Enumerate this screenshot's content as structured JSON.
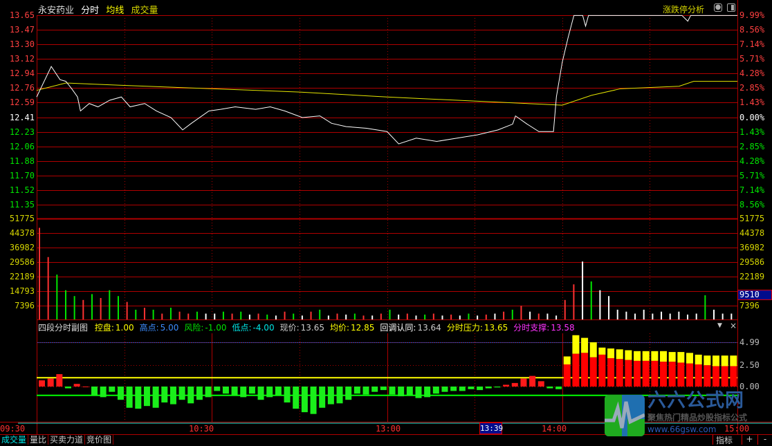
{
  "header": {
    "stock_name": "永安药业",
    "mode": "分时",
    "avg_label": "均线",
    "vol_label": "成交量",
    "limit_analysis": "涨跌停分析"
  },
  "colors": {
    "up": "#ff3232",
    "down": "#00e600",
    "flat": "#ffffff",
    "grid": "#b00000",
    "price_line": "#ffffff",
    "avg_line": "#e6e600",
    "axis_text_vol": "#d6d600",
    "highlight_bg": "#000c8c"
  },
  "price_axis": {
    "prev_close": 12.41,
    "prices": [
      "13.65",
      "13.47",
      "13.30",
      "13.12",
      "12.94",
      "12.76",
      "12.59",
      "12.41",
      "12.23",
      "12.06",
      "11.88",
      "11.70",
      "11.52",
      "11.35"
    ],
    "percents": [
      "9.99%",
      "8.56%",
      "7.14%",
      "5.71%",
      "4.28%",
      "2.85%",
      "1.43%",
      "0.00%",
      "1.43%",
      "2.85%",
      "4.28%",
      "5.71%",
      "7.14%",
      "8.56%"
    ]
  },
  "vol_axis": {
    "labels": [
      "51775",
      "44378",
      "36982",
      "29586",
      "22189",
      "14793",
      "7396"
    ],
    "max": 51775,
    "cursor_value": "9510"
  },
  "sub_indicator": {
    "name": "四段分时副图",
    "fields": [
      {
        "label": "控盘:",
        "value": "1.00",
        "color": "#ffff00"
      },
      {
        "label": "高点:",
        "value": "5.00",
        "color": "#3c8cff"
      },
      {
        "label": "风险:",
        "value": "-1.00",
        "color": "#00e600"
      },
      {
        "label": "低点:",
        "value": "-4.00",
        "color": "#00e6e6"
      },
      {
        "label": "现价:",
        "value": "13.65",
        "color": "#cccccc"
      },
      {
        "label": "均价:",
        "value": "12.85",
        "color": "#ffff00"
      },
      {
        "label": "回调认同:",
        "value": "13.64",
        "color": "#ffffff"
      },
      {
        "label": "分时压力:",
        "value": "13.65",
        "color": "#ffff00"
      },
      {
        "label": "分时支撑:",
        "value": "13.58",
        "color": "#ff32ff"
      }
    ],
    "axis": [
      "4.99",
      "2.50",
      "0.00"
    ]
  },
  "time_axis": {
    "labels": [
      "09:30",
      "10:30",
      "13:00",
      "14:00",
      "15:00"
    ],
    "cursor_time": "13:39"
  },
  "bottom_tabs": [
    "成交量",
    "量比",
    "买卖力道",
    "竞价图"
  ],
  "bottom_right": {
    "indicator": "指标",
    "plus": "+",
    "minus": "-"
  },
  "logo": {
    "name": "六六公式网",
    "slogan": "聚焦热门精品炒股指标公式",
    "url": "www.66gsw.com"
  },
  "chart_data": {
    "type": "line",
    "price": [
      [
        "09:30",
        12.66
      ],
      [
        "09:35",
        13.03
      ],
      [
        "09:38",
        12.87
      ],
      [
        "09:40",
        12.85
      ],
      [
        "09:42",
        12.76
      ],
      [
        "09:44",
        12.66
      ],
      [
        "09:45",
        12.49
      ],
      [
        "09:48",
        12.58
      ],
      [
        "09:51",
        12.54
      ],
      [
        "09:55",
        12.62
      ],
      [
        "09:59",
        12.66
      ],
      [
        "10:02",
        12.54
      ],
      [
        "10:07",
        12.58
      ],
      [
        "10:11",
        12.49
      ],
      [
        "10:16",
        12.41
      ],
      [
        "10:20",
        12.26
      ],
      [
        "10:23",
        12.34
      ],
      [
        "10:29",
        12.49
      ],
      [
        "10:33",
        12.51
      ],
      [
        "10:38",
        12.54
      ],
      [
        "10:45",
        12.51
      ],
      [
        "10:50",
        12.54
      ],
      [
        "10:55",
        12.49
      ],
      [
        "11:01",
        12.41
      ],
      [
        "11:07",
        12.43
      ],
      [
        "11:11",
        12.34
      ],
      [
        "11:16",
        12.3
      ],
      [
        "11:23",
        12.28
      ],
      [
        "13:00",
        12.24
      ],
      [
        "13:04",
        12.09
      ],
      [
        "13:10",
        12.16
      ],
      [
        "13:17",
        12.12
      ],
      [
        "13:24",
        12.16
      ],
      [
        "13:31",
        12.2
      ],
      [
        "13:38",
        12.26
      ],
      [
        "13:43",
        12.33
      ],
      [
        "13:44",
        12.43
      ],
      [
        "13:48",
        12.33
      ],
      [
        "13:52",
        12.24
      ],
      [
        "13:57",
        12.24
      ],
      [
        "13:58",
        12.66
      ],
      [
        "14:00",
        13.08
      ],
      [
        "14:02",
        13.38
      ],
      [
        "14:04",
        13.65
      ],
      [
        "14:07",
        13.65
      ],
      [
        "14:08",
        13.52
      ],
      [
        "14:09",
        13.65
      ],
      [
        "14:41",
        13.65
      ],
      [
        "14:43",
        13.58
      ],
      [
        "14:44",
        13.65
      ],
      [
        "15:00",
        13.65
      ]
    ],
    "avg": [
      [
        "09:30",
        12.74
      ],
      [
        "09:40",
        12.83
      ],
      [
        "10:00",
        12.8
      ],
      [
        "11:00",
        12.72
      ],
      [
        "13:00",
        12.66
      ],
      [
        "14:00",
        12.56
      ],
      [
        "14:10",
        12.68
      ],
      [
        "14:20",
        12.76
      ],
      [
        "14:40",
        12.79
      ],
      [
        "14:45",
        12.85
      ],
      [
        "15:00",
        12.85
      ]
    ],
    "volume": [
      [
        47000,
        "r"
      ],
      [
        32000,
        "r"
      ],
      [
        23000,
        "g"
      ],
      [
        15000,
        "g"
      ],
      [
        12000,
        "g"
      ],
      [
        10000,
        "r"
      ],
      [
        13000,
        "g"
      ],
      [
        11000,
        "r"
      ],
      [
        15000,
        "g"
      ],
      [
        12000,
        "g"
      ],
      [
        9000,
        "r"
      ],
      [
        5000,
        "g"
      ],
      [
        6000,
        "r"
      ],
      [
        5000,
        "g"
      ],
      [
        3000,
        "r"
      ],
      [
        6000,
        "g"
      ],
      [
        4000,
        "r"
      ],
      [
        3000,
        "r"
      ],
      [
        4000,
        "g"
      ],
      [
        3000,
        "w"
      ],
      [
        3000,
        "w"
      ],
      [
        4000,
        "g"
      ],
      [
        3000,
        "r"
      ],
      [
        4000,
        "g"
      ],
      [
        2500,
        "w"
      ],
      [
        3000,
        "r"
      ],
      [
        2500,
        "g"
      ],
      [
        2000,
        "w"
      ],
      [
        4000,
        "r"
      ],
      [
        3000,
        "g"
      ],
      [
        2000,
        "w"
      ],
      [
        4000,
        "r"
      ],
      [
        5000,
        "g"
      ],
      [
        2000,
        "w"
      ],
      [
        3000,
        "r"
      ],
      [
        2500,
        "w"
      ],
      [
        3000,
        "g"
      ],
      [
        2000,
        "r"
      ],
      [
        2000,
        "w"
      ],
      [
        3000,
        "r"
      ],
      [
        5000,
        "g"
      ],
      [
        2500,
        "w"
      ],
      [
        3000,
        "r"
      ],
      [
        2000,
        "w"
      ],
      [
        2500,
        "g"
      ],
      [
        3000,
        "r"
      ],
      [
        2000,
        "w"
      ],
      [
        2500,
        "r"
      ],
      [
        2000,
        "w"
      ],
      [
        3000,
        "g"
      ],
      [
        2000,
        "w"
      ],
      [
        2500,
        "r"
      ],
      [
        3000,
        "w"
      ],
      [
        4000,
        "r"
      ],
      [
        5000,
        "g"
      ],
      [
        7000,
        "r"
      ],
      [
        4000,
        "w"
      ],
      [
        3000,
        "r"
      ],
      [
        3000,
        "w"
      ],
      [
        2000,
        "w"
      ],
      [
        10000,
        "r"
      ],
      [
        18000,
        "r"
      ],
      [
        29700,
        "w"
      ],
      [
        19500,
        "g"
      ],
      [
        15000,
        "w"
      ],
      [
        12000,
        "w"
      ],
      [
        5000,
        "w"
      ],
      [
        4000,
        "w"
      ],
      [
        3000,
        "w"
      ],
      [
        5000,
        "w"
      ],
      [
        3000,
        "w"
      ],
      [
        4000,
        "w"
      ],
      [
        3000,
        "w"
      ],
      [
        4000,
        "w"
      ],
      [
        2500,
        "w"
      ],
      [
        3000,
        "w"
      ],
      [
        12400,
        "g"
      ],
      [
        5000,
        "w"
      ],
      [
        3000,
        "w"
      ],
      [
        3000,
        "w"
      ]
    ],
    "sub": [
      0.7,
      0.9,
      1.4,
      -0.2,
      0.3,
      0.0,
      -1.0,
      -1.2,
      -0.6,
      -1.5,
      -2.4,
      -2.5,
      -2.2,
      -2.4,
      -1.8,
      -2.0,
      -1.5,
      -1.9,
      -1.5,
      -1.2,
      -0.5,
      -0.8,
      -1.0,
      -1.2,
      -0.8,
      -1.5,
      -1.2,
      -1.0,
      -1.8,
      -2.5,
      -2.9,
      -3.1,
      -2.4,
      -2.0,
      -1.9,
      -1.5,
      -0.8,
      -0.9,
      -0.6,
      -0.4,
      -0.9,
      -1.1,
      -1.0,
      -1.3,
      -1.2,
      -0.8,
      -0.6,
      -0.5,
      -0.5,
      -0.3,
      -0.4,
      -0.2,
      -0.1,
      0.2,
      0.4,
      0.9,
      1.2,
      0.6,
      -0.2,
      -0.3
    ],
    "sub_upper": [
      [
        2.5,
        3.4
      ],
      [
        3.7,
        5.8
      ],
      [
        3.8,
        5.5
      ],
      [
        3.3,
        5.0
      ],
      [
        3.6,
        4.4
      ],
      [
        3.2,
        4.3
      ],
      [
        3.1,
        4.2
      ],
      [
        3.0,
        4.1
      ],
      [
        2.9,
        4.0
      ],
      [
        2.9,
        4.0
      ],
      [
        2.9,
        4.0
      ],
      [
        2.8,
        4.0
      ],
      [
        2.8,
        3.9
      ],
      [
        2.7,
        3.9
      ],
      [
        2.6,
        3.8
      ],
      [
        2.5,
        3.6
      ],
      [
        2.4,
        3.5
      ],
      [
        2.3,
        3.5
      ],
      [
        2.3,
        3.5
      ],
      [
        2.3,
        3.5
      ]
    ],
    "sub_lines": {
      "control": 1.0,
      "risk": -1.0
    }
  }
}
